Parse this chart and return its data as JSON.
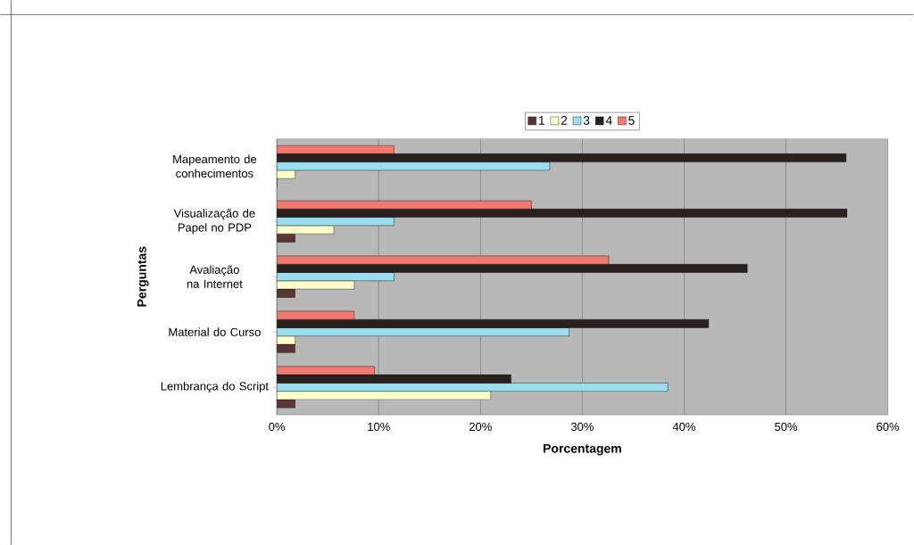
{
  "chart_data": {
    "type": "bar",
    "orientation": "horizontal",
    "xlabel": "Porcentagem",
    "ylabel": "Perguntas",
    "categories": [
      "Mapeamento de conhecimentos",
      "Visualização de Papel no PDP",
      "Avaliação na Internet",
      "Material do Curso",
      "Lembrança do Script"
    ],
    "series": [
      {
        "name": "1",
        "color": "#5a3535",
        "values": [
          0,
          1.8,
          1.8,
          1.8,
          1.8
        ]
      },
      {
        "name": "2",
        "color": "#ffffcc",
        "values": [
          1.8,
          5.6,
          7.6,
          1.8,
          21.0
        ]
      },
      {
        "name": "3",
        "color": "#99ddee",
        "values": [
          26.8,
          11.5,
          11.5,
          28.7,
          38.4
        ]
      },
      {
        "name": "4",
        "color": "#2a2020",
        "values": [
          55.9,
          56.0,
          46.2,
          42.4,
          23.0
        ]
      },
      {
        "name": "5",
        "color": "#f07a70",
        "values": [
          11.5,
          25.0,
          32.6,
          7.6,
          9.6
        ]
      }
    ],
    "xlim": [
      0,
      60
    ],
    "xticks": [
      {
        "value": 0,
        "label": "0%"
      },
      {
        "value": 10,
        "label": "10%"
      },
      {
        "value": 20,
        "label": "20%"
      },
      {
        "value": 30,
        "label": "30%"
      },
      {
        "value": 40,
        "label": "40%"
      },
      {
        "value": 50,
        "label": "50%"
      },
      {
        "value": 60,
        "label": "60%"
      }
    ],
    "grid": "x",
    "legend": "top"
  }
}
